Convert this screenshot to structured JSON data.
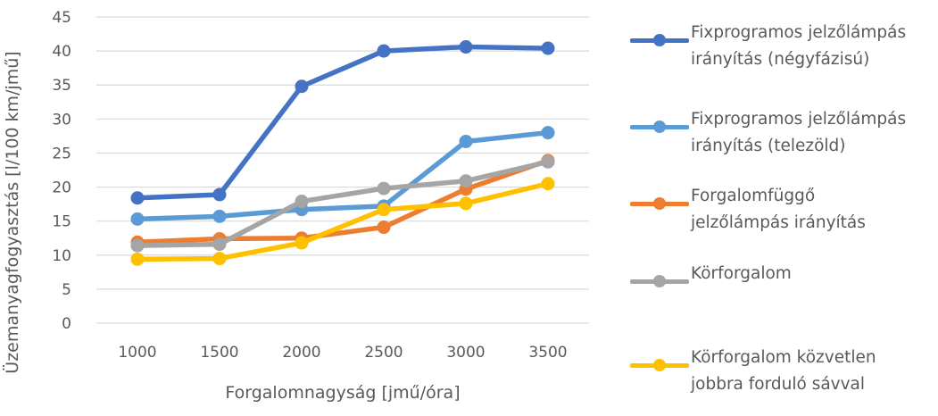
{
  "chart_data": {
    "type": "line",
    "xlabel": "Forgalomnagyság [jmű/óra]",
    "ylabel": "Üzemanyagfogyasztás [l/100 km/jmű]",
    "categories": [
      "1000",
      "1500",
      "2000",
      "2500",
      "3000",
      "3500"
    ],
    "ylim": [
      0,
      45
    ],
    "yticks": [
      0,
      5,
      10,
      15,
      20,
      25,
      30,
      35,
      40,
      45
    ],
    "grid": true,
    "legend_position": "right",
    "series": [
      {
        "name": "Fixprogramos jelzőlámpás irányítás (négyfázisú)",
        "legend_lines": [
          "Fixprogramos jelzőlámpás",
          "irányítás (négyfázisú)"
        ],
        "color": "#4472C4",
        "values": [
          18.4,
          18.9,
          34.8,
          40.0,
          40.6,
          40.4
        ]
      },
      {
        "name": "Fixprogramos jelzőlámpás irányítás (telezöld)",
        "legend_lines": [
          "Fixprogramos jelzőlámpás",
          "irányítás (telezöld)"
        ],
        "color": "#5B9BD5",
        "values": [
          15.3,
          15.7,
          16.7,
          17.2,
          26.7,
          28.0
        ]
      },
      {
        "name": "Forgalomfüggő jelzőlámpás irányítás",
        "legend_lines": [
          "Forgalomfüggő",
          "jelzőlámpás irányítás"
        ],
        "color": "#ED7D31",
        "values": [
          11.9,
          12.4,
          12.5,
          14.1,
          19.7,
          23.9
        ]
      },
      {
        "name": "Körforgalom",
        "legend_lines": [
          "Körforgalom"
        ],
        "color": "#A5A5A5",
        "values": [
          11.4,
          11.6,
          17.9,
          19.8,
          20.9,
          23.7
        ]
      },
      {
        "name": "Körforgalom közvetlen jobbra forduló sávval",
        "legend_lines": [
          "Körforgalom közvetlen",
          "jobbra forduló sávval"
        ],
        "color": "#FFC000",
        "values": [
          9.4,
          9.5,
          11.8,
          16.7,
          17.6,
          20.5
        ]
      }
    ]
  }
}
